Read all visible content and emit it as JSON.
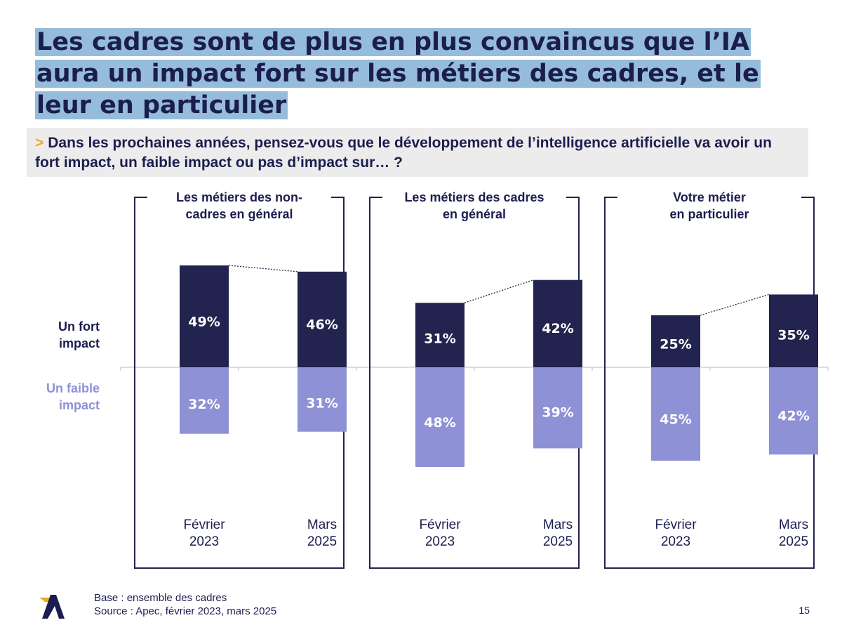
{
  "title": "Les cadres sont de plus en plus convaincus que l’IA aura un impact fort sur les métiers des cadres, et le leur en particulier",
  "question": {
    "marker": ">",
    "text": "Dans les prochaines années, pensez-vous que le développement de l’intelligence artificielle va avoir un fort impact, un faible impact ou pas d’impact sur… ?"
  },
  "legend": {
    "strong": "Un fort impact",
    "weak": "Un faible impact"
  },
  "colors": {
    "strong": "#23234f",
    "weak": "#8f91d6",
    "title_highlight": "#95bddb",
    "accent": "#f5a623"
  },
  "chart_data": {
    "type": "bar",
    "stacking": "diverging",
    "panels": [
      {
        "title_lines": [
          "Les métiers des non-",
          "cadres en général"
        ],
        "categories": [
          [
            "Février",
            "2023"
          ],
          [
            "Mars",
            "2025"
          ]
        ],
        "series": [
          {
            "name": "Un fort impact",
            "values": [
              49,
              46
            ],
            "labels": [
              "49%",
              "46%"
            ]
          },
          {
            "name": "Un faible impact",
            "values": [
              32,
              31
            ],
            "labels": [
              "32%",
              "31%"
            ]
          }
        ]
      },
      {
        "title_lines": [
          "Les métiers des cadres",
          "en général"
        ],
        "categories": [
          [
            "Février",
            "2023"
          ],
          [
            "Mars",
            "2025"
          ]
        ],
        "series": [
          {
            "name": "Un fort impact",
            "values": [
              31,
              42
            ],
            "labels": [
              "31%",
              "42%"
            ]
          },
          {
            "name": "Un faible impact",
            "values": [
              48,
              39
            ],
            "labels": [
              "48%",
              "39%"
            ]
          }
        ]
      },
      {
        "title_lines": [
          "Votre métier",
          "en particulier"
        ],
        "categories": [
          [
            "Février",
            "2023"
          ],
          [
            "Mars",
            "2025"
          ]
        ],
        "series": [
          {
            "name": "Un fort impact",
            "values": [
              25,
              35
            ],
            "labels": [
              "25%",
              "35%"
            ]
          },
          {
            "name": "Un faible impact",
            "values": [
              45,
              42
            ],
            "labels": [
              "45%",
              "42%"
            ]
          }
        ]
      }
    ]
  },
  "footer": {
    "base": "Base : ensemble des cadres",
    "source": "Source : Apec, février 2023, mars 2025"
  },
  "page_number": "15"
}
